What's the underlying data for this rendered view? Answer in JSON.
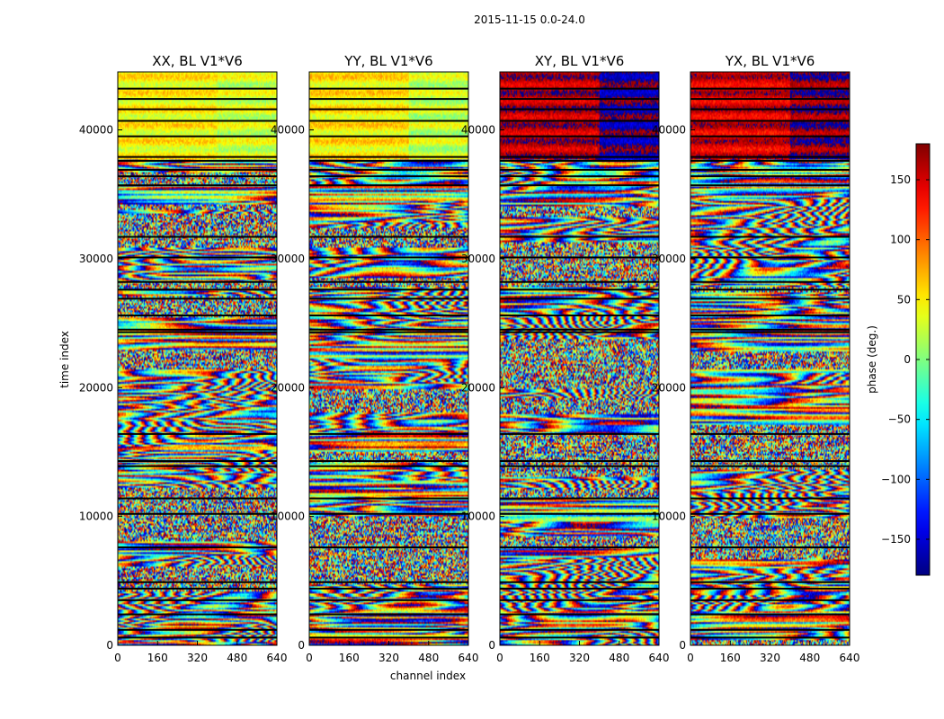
{
  "figure": {
    "suptitle": "2015-11-15 0.0-24.0",
    "xlabel": "channel index",
    "ylabel": "time index"
  },
  "chart_data": {
    "type": "heatmap",
    "title": "2015-11-15 0.0-24.0",
    "xlabel": "channel index",
    "ylabel": "time index",
    "xlim": [
      0,
      640
    ],
    "ylim": [
      0,
      44500
    ],
    "x_ticks": [
      0,
      160,
      320,
      480,
      640
    ],
    "y_ticks": [
      0,
      10000,
      20000,
      30000,
      40000
    ],
    "panels": [
      {
        "title": "XX, BL V1*V6",
        "baseline": 20,
        "stripe_freq": 0.11,
        "seed": 1,
        "upper_value": 45,
        "upper_alt": 30
      },
      {
        "title": "YY, BL V1*V6",
        "baseline": 25,
        "stripe_freq": 0.09,
        "seed": 2,
        "upper_value": 50,
        "upper_alt": 25
      },
      {
        "title": "XY, BL V1*V6",
        "baseline": -40,
        "stripe_freq": 0.14,
        "seed": 3,
        "upper_value": 160,
        "upper_alt": -170
      },
      {
        "title": "YX, BL V1*V6",
        "baseline": 140,
        "stripe_freq": 0.13,
        "seed": 4,
        "upper_value": 150,
        "upper_alt": 175
      }
    ],
    "colorbar": {
      "label": "phase (deg.)",
      "range": [
        -180,
        180
      ],
      "ticks": [
        -150,
        -100,
        -50,
        0,
        50,
        100,
        150
      ],
      "tick_labels": [
        "−150",
        "−100",
        "−50",
        "0",
        "50",
        "100",
        "150"
      ],
      "colormap": "jet"
    },
    "flagged_rows_time_index": [
      600,
      1200,
      2400,
      3500,
      4400,
      4900,
      7600,
      10200,
      11400,
      13900,
      14300,
      16400,
      24300,
      24500,
      25600,
      26900,
      27600,
      28200,
      30100,
      31700,
      35700,
      36400,
      36900,
      37600,
      37900,
      39500,
      40700,
      41600,
      42400,
      43200
    ]
  }
}
